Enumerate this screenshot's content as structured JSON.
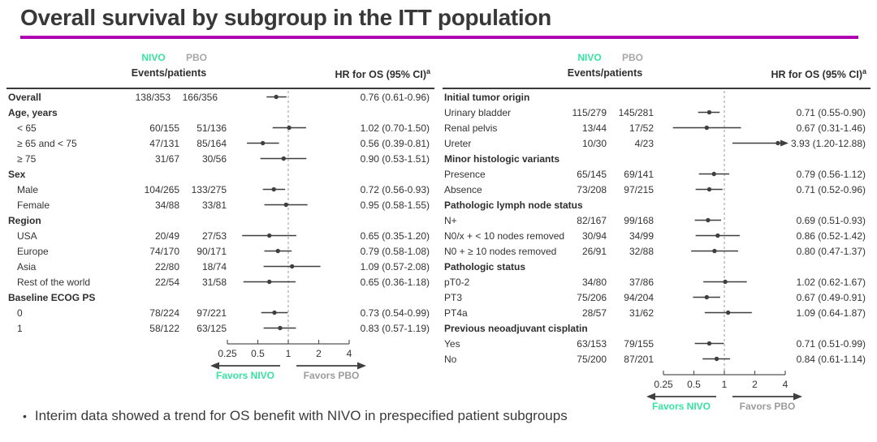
{
  "title": "Overall survival by subgroup in the ITT population",
  "footnote_bullet": {
    "marker": "•",
    "text": "Interim data showed a trend for OS benefit with NIVO in prespecified patient subgroups"
  },
  "colors": {
    "nivo_accent": "#37e3a0",
    "pbo_gray": "#a7a7a7",
    "title_underline": "#b100b1",
    "marker_line": "#3f3f3f",
    "reference_line": "#999999",
    "text": "#333333"
  },
  "chart_data": [
    {
      "type": "scatter",
      "variant": "forest-plot",
      "title": "",
      "columns": {
        "nivo": "NIVO",
        "pbo": "PBO",
        "events": "Events/patients",
        "hr": "HR for OS (95% CI)",
        "hr_sup": "a"
      },
      "x_axis": {
        "scale": "log",
        "range": [
          0.25,
          4
        ],
        "ticks": [
          0.25,
          0.5,
          1,
          2,
          4
        ],
        "tick_labels": [
          "0.25",
          "0.5",
          "1",
          "2",
          "4"
        ],
        "reference_line": 1
      },
      "favors": {
        "left": "Favors NIVO",
        "right": "Favors PBO"
      },
      "rows": [
        {
          "label": "Overall",
          "bold": true,
          "nivo": "138/353",
          "pbo": "166/356",
          "hr": 0.76,
          "lo": 0.61,
          "hi": 0.96,
          "hr_text": "0.76 (0.61-0.96)"
        },
        {
          "label": "Age, years",
          "bold": true
        },
        {
          "label": "< 65",
          "indent": true,
          "nivo": "60/155",
          "pbo": "51/136",
          "hr": 1.02,
          "lo": 0.7,
          "hi": 1.5,
          "hr_text": "1.02 (0.70-1.50)"
        },
        {
          "label": "≥ 65 and < 75",
          "indent": true,
          "nivo": "47/131",
          "pbo": "85/164",
          "hr": 0.56,
          "lo": 0.39,
          "hi": 0.81,
          "hr_text": "0.56 (0.39-0.81)"
        },
        {
          "label": "≥ 75",
          "indent": true,
          "nivo": "31/67",
          "pbo": "30/56",
          "hr": 0.9,
          "lo": 0.53,
          "hi": 1.51,
          "hr_text": "0.90 (0.53-1.51)"
        },
        {
          "label": "Sex",
          "bold": true
        },
        {
          "label": "Male",
          "indent": true,
          "nivo": "104/265",
          "pbo": "133/275",
          "hr": 0.72,
          "lo": 0.56,
          "hi": 0.93,
          "hr_text": "0.72 (0.56-0.93)"
        },
        {
          "label": "Female",
          "indent": true,
          "nivo": "34/88",
          "pbo": "33/81",
          "hr": 0.95,
          "lo": 0.58,
          "hi": 1.55,
          "hr_text": "0.95 (0.58-1.55)"
        },
        {
          "label": "Region",
          "bold": true
        },
        {
          "label": "USA",
          "indent": true,
          "nivo": "20/49",
          "pbo": "27/53",
          "hr": 0.65,
          "lo": 0.35,
          "hi": 1.2,
          "hr_text": "0.65 (0.35-1.20)"
        },
        {
          "label": "Europe",
          "indent": true,
          "nivo": "74/170",
          "pbo": "90/171",
          "hr": 0.79,
          "lo": 0.58,
          "hi": 1.08,
          "hr_text": "0.79 (0.58-1.08)"
        },
        {
          "label": "Asia",
          "indent": true,
          "nivo": "22/80",
          "pbo": "18/74",
          "hr": 1.09,
          "lo": 0.57,
          "hi": 2.08,
          "hr_text": "1.09 (0.57-2.08)"
        },
        {
          "label": "Rest of the world",
          "indent": true,
          "nivo": "22/54",
          "pbo": "31/58",
          "hr": 0.65,
          "lo": 0.36,
          "hi": 1.18,
          "hr_text": "0.65 (0.36-1.18)"
        },
        {
          "label": "Baseline ECOG PS",
          "bold": true
        },
        {
          "label": "0",
          "indent": true,
          "nivo": "78/224",
          "pbo": "97/221",
          "hr": 0.73,
          "lo": 0.54,
          "hi": 0.99,
          "hr_text": "0.73 (0.54-0.99)"
        },
        {
          "label": "1",
          "indent": true,
          "nivo": "58/122",
          "pbo": "63/125",
          "hr": 0.83,
          "lo": 0.57,
          "hi": 1.19,
          "hr_text": "0.83 (0.57-1.19)"
        }
      ]
    },
    {
      "type": "scatter",
      "variant": "forest-plot",
      "title": "",
      "columns": {
        "nivo": "NIVO",
        "pbo": "PBO",
        "events": "Events/patients",
        "hr": "HR for OS (95% CI)",
        "hr_sup": "a"
      },
      "x_axis": {
        "scale": "log",
        "range": [
          0.25,
          4
        ],
        "ticks": [
          0.25,
          0.5,
          1,
          2,
          4
        ],
        "tick_labels": [
          "0.25",
          "0.5",
          "1",
          "2",
          "4"
        ],
        "reference_line": 1
      },
      "favors": {
        "left": "Favors NIVO",
        "right": "Favors PBO"
      },
      "rows": [
        {
          "label": "Initial tumor origin",
          "bold": true
        },
        {
          "label": "Urinary bladder",
          "nivo": "115/279",
          "pbo": "145/281",
          "hr": 0.71,
          "lo": 0.55,
          "hi": 0.9,
          "hr_text": "0.71 (0.55-0.90)"
        },
        {
          "label": "Renal pelvis",
          "nivo": "13/44",
          "pbo": "17/52",
          "hr": 0.67,
          "lo": 0.31,
          "hi": 1.46,
          "hr_text": "0.67 (0.31-1.46)"
        },
        {
          "label": "Ureter",
          "nivo": "10/30",
          "pbo": "4/23",
          "hr": 3.93,
          "lo": 1.2,
          "hi": 12.88,
          "hr_text": "3.93 (1.20-12.88)",
          "arrow_hi": true
        },
        {
          "label": "Minor histologic variants",
          "bold": true
        },
        {
          "label": "Presence",
          "nivo": "65/145",
          "pbo": "69/141",
          "hr": 0.79,
          "lo": 0.56,
          "hi": 1.12,
          "hr_text": "0.79 (0.56-1.12)"
        },
        {
          "label": "Absence",
          "nivo": "73/208",
          "pbo": "97/215",
          "hr": 0.71,
          "lo": 0.52,
          "hi": 0.96,
          "hr_text": "0.71 (0.52-0.96)"
        },
        {
          "label": "Pathologic lymph node status",
          "bold": true
        },
        {
          "label": "N+",
          "nivo": "82/167",
          "pbo": "99/168",
          "hr": 0.69,
          "lo": 0.51,
          "hi": 0.93,
          "hr_text": "0.69 (0.51-0.93)"
        },
        {
          "label": "N0/x + < 10 nodes removed",
          "nivo": "30/94",
          "pbo": "34/99",
          "hr": 0.86,
          "lo": 0.52,
          "hi": 1.42,
          "hr_text": "0.86 (0.52-1.42)"
        },
        {
          "label": "N0 + ≥ 10 nodes removed",
          "nivo": "26/91",
          "pbo": "32/88",
          "hr": 0.8,
          "lo": 0.47,
          "hi": 1.37,
          "hr_text": "0.80 (0.47-1.37)"
        },
        {
          "label": "Pathologic status",
          "bold": true
        },
        {
          "label": "pT0-2",
          "nivo": "34/80",
          "pbo": "37/86",
          "hr": 1.02,
          "lo": 0.62,
          "hi": 1.67,
          "hr_text": "1.02 (0.62-1.67)"
        },
        {
          "label": "PT3",
          "nivo": "75/206",
          "pbo": "94/204",
          "hr": 0.67,
          "lo": 0.49,
          "hi": 0.91,
          "hr_text": "0.67 (0.49-0.91)"
        },
        {
          "label": "PT4a",
          "nivo": "28/57",
          "pbo": "31/62",
          "hr": 1.09,
          "lo": 0.64,
          "hi": 1.87,
          "hr_text": "1.09 (0.64-1.87)"
        },
        {
          "label": "Previous neoadjuvant cisplatin",
          "bold": true
        },
        {
          "label": "Yes",
          "nivo": "63/153",
          "pbo": "79/155",
          "hr": 0.71,
          "lo": 0.51,
          "hi": 0.99,
          "hr_text": "0.71 (0.51-0.99)"
        },
        {
          "label": "No",
          "nivo": "75/200",
          "pbo": "87/201",
          "hr": 0.84,
          "lo": 0.61,
          "hi": 1.14,
          "hr_text": "0.84 (0.61-1.14)"
        }
      ]
    }
  ]
}
